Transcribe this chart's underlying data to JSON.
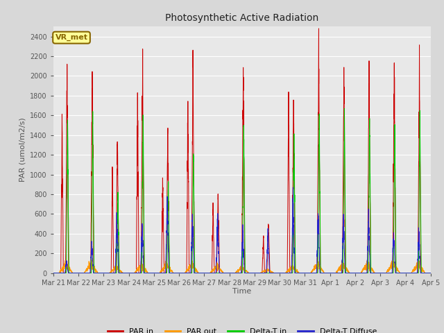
{
  "title": "Photosynthetic Active Radiation",
  "xlabel": "Time",
  "ylabel": "PAR (umol/m2/s)",
  "ylim": [
    0,
    2500
  ],
  "yticks": [
    0,
    200,
    400,
    600,
    800,
    1000,
    1200,
    1400,
    1600,
    1800,
    2000,
    2200,
    2400
  ],
  "fig_bg_color": "#d8d8d8",
  "plot_bg_color": "#e8e8e8",
  "legend_labels": [
    "PAR in",
    "PAR out",
    "Delta-T in",
    "Delta-T Diffuse"
  ],
  "line_colors": [
    "#cc0000",
    "#ff9900",
    "#00cc00",
    "#2222cc"
  ],
  "annotation_text": "VR_met",
  "annotation_bg": "#ffff99",
  "annotation_border": "#886600",
  "days": [
    "Mar 21",
    "Mar 22",
    "Mar 23",
    "Mar 24",
    "Mar 25",
    "Mar 26",
    "Mar 27",
    "Mar 28",
    "Mar 29",
    "Mar 30",
    "Mar 31",
    "Apr 1",
    "Apr 2",
    "Apr 3",
    "Apr 4",
    "Apr 5"
  ],
  "n_days": 15,
  "pts_per_day": 288,
  "par_in_peaks": [
    1950,
    2000,
    1350,
    2100,
    1450,
    2100,
    800,
    2030,
    520,
    1810,
    2250,
    2080,
    2070,
    2060,
    2060
  ],
  "par_in_morning": [
    1600,
    0,
    980,
    1850,
    990,
    1650,
    650,
    0,
    380,
    1680,
    0,
    0,
    0,
    0,
    0
  ],
  "par_out_peaks": [
    90,
    90,
    55,
    75,
    85,
    85,
    65,
    55,
    35,
    65,
    85,
    85,
    95,
    95,
    85
  ],
  "delta_t_peaks": [
    1550,
    1580,
    820,
    1560,
    960,
    1280,
    0,
    1560,
    0,
    1400,
    1640,
    1640,
    1640,
    1610,
    1610
  ],
  "delta_t_diffuse": [
    130,
    290,
    570,
    490,
    730,
    570,
    570,
    450,
    400,
    710,
    580,
    550,
    530,
    410,
    420
  ]
}
